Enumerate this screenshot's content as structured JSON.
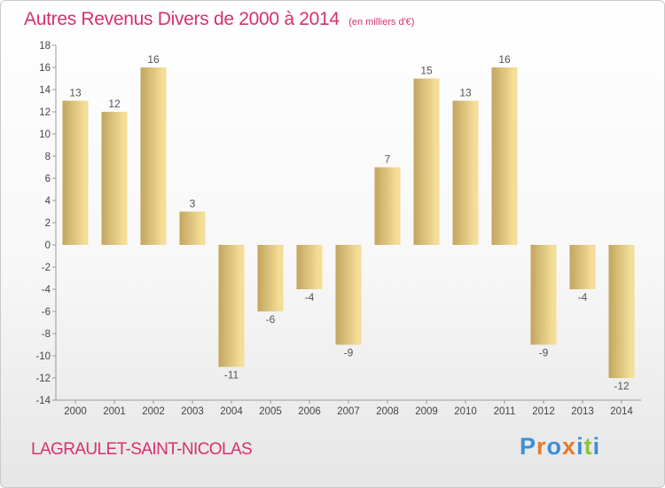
{
  "header": {
    "title": "Autres Revenus Divers de 2000 à 2014",
    "unit": "(en milliers d'€)"
  },
  "footer": {
    "commune": "LAGRAULET-SAINT-NICOLAS",
    "logo_text": "Proxiti",
    "logo_colors": [
      "#3b8fd6",
      "#e8792b",
      "#3b8fd6",
      "#e8792b",
      "#3b8fd6",
      "#8cc43c",
      "#3b8fd6"
    ]
  },
  "chart_data": {
    "type": "bar",
    "categories": [
      "2000",
      "2001",
      "2002",
      "2003",
      "2004",
      "2005",
      "2006",
      "2007",
      "2008",
      "2009",
      "2010",
      "2011",
      "2012",
      "2013",
      "2014"
    ],
    "values": [
      13,
      12,
      16,
      3,
      -11,
      -6,
      -4,
      -9,
      7,
      15,
      13,
      16,
      -9,
      -4,
      -12
    ],
    "value_labels": [
      "13",
      "12",
      "16",
      "3",
      "-11",
      "-6",
      "-4",
      "-9",
      "7",
      "15",
      "13",
      "16",
      "-9",
      "-4",
      "-12"
    ],
    "title": "Autres Revenus Divers de 2000 à 2014",
    "xlabel": "",
    "ylabel": "",
    "ylim": [
      -14,
      18
    ],
    "yticks": [
      18,
      16,
      14,
      12,
      10,
      8,
      6,
      4,
      2,
      0,
      -2,
      -4,
      -6,
      -8,
      -10,
      -12,
      -14
    ],
    "ytick_labels": [
      "18",
      "16",
      "14",
      "12",
      "10",
      "8",
      "6",
      "4",
      "2",
      "0",
      "-2",
      "-4",
      "-6",
      "-8",
      "-10",
      "-12",
      "-14"
    ],
    "grid": false,
    "bar_color_light": "#f4dd96",
    "bar_color_dark": "#c2a55f"
  }
}
